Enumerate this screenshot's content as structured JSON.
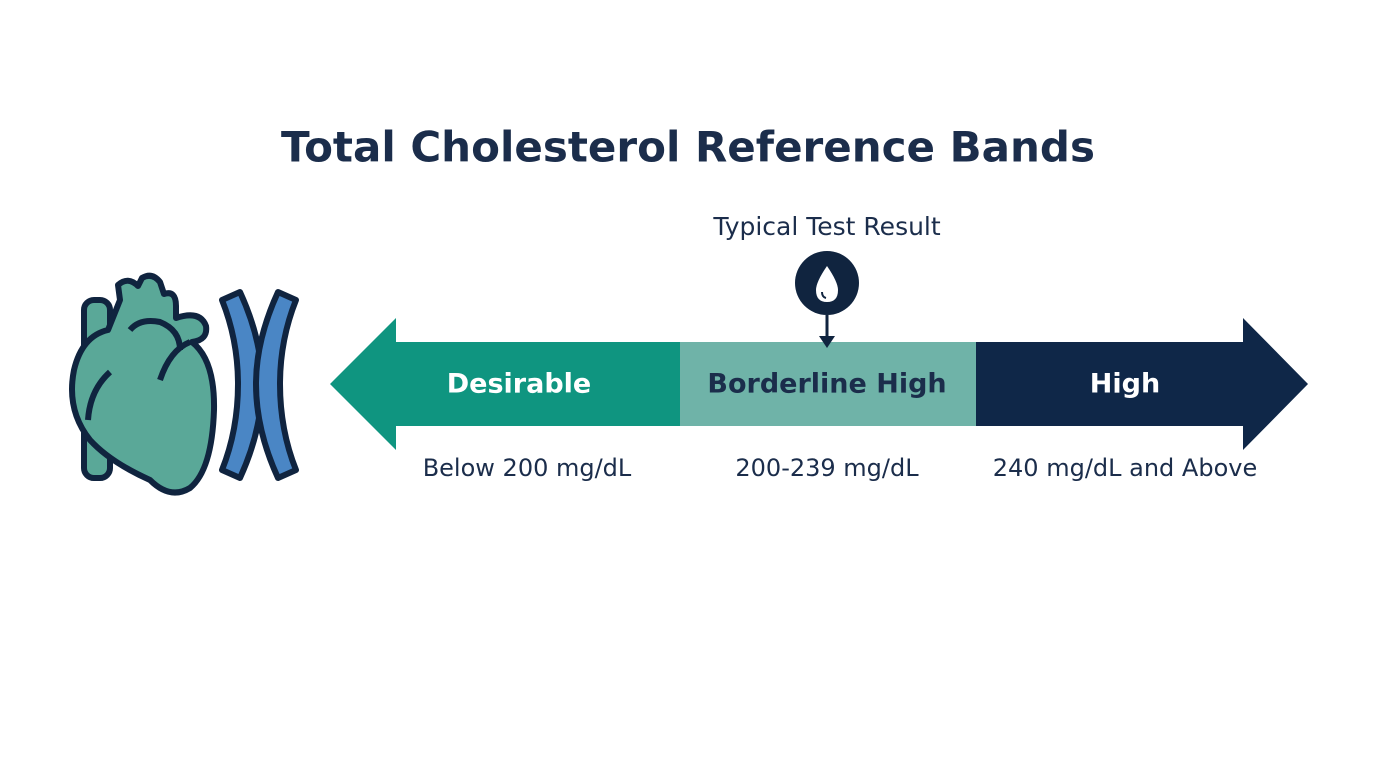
{
  "title": "Total Cholesterol Reference Bands",
  "marker": {
    "label": "Typical Test Result"
  },
  "bands": [
    {
      "name": "Desirable",
      "range": "Below 200 mg/dL"
    },
    {
      "name": "Borderline High",
      "range": "200-239 mg/dL"
    },
    {
      "name": "High",
      "range": "240 mg/dL and Above"
    }
  ]
}
